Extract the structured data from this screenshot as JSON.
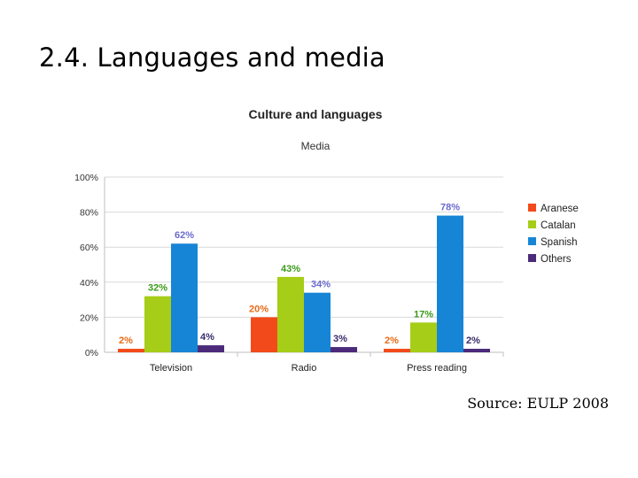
{
  "slide": {
    "title": "2.4. Languages and media",
    "source": "Source: EULP 2008"
  },
  "chart_data": {
    "type": "bar",
    "title": "Culture and languages",
    "subtitle": "Media",
    "xlabel": "",
    "ylabel": "",
    "ylim": [
      0,
      100
    ],
    "y_ticks": [
      "0%",
      "20%",
      "40%",
      "60%",
      "80%",
      "100%"
    ],
    "grid": true,
    "legend_position": "right",
    "categories": [
      "Television",
      "Radio",
      "Press reading"
    ],
    "series": [
      {
        "name": "Aranese",
        "color": "#f24a1a",
        "values": [
          2,
          20,
          2
        ],
        "labels": [
          "2%",
          "20%",
          "2%"
        ]
      },
      {
        "name": "Catalan",
        "color": "#a6cd17",
        "values": [
          32,
          43,
          17
        ],
        "labels": [
          "32%",
          "43%",
          "17%"
        ]
      },
      {
        "name": "Spanish",
        "color": "#1785d6",
        "values": [
          62,
          34,
          78
        ],
        "labels": [
          "62%",
          "34%",
          "78%"
        ]
      },
      {
        "name": "Others",
        "color": "#4b2a7a",
        "values": [
          4,
          3,
          2
        ],
        "labels": [
          "4%",
          "3%",
          "2%"
        ]
      }
    ],
    "label_colors": {
      "Aranese": "#e86a17",
      "Catalan": "#3a9a1a",
      "Spanish": "#6a6ad0",
      "Others": "#3a2a6a"
    }
  }
}
